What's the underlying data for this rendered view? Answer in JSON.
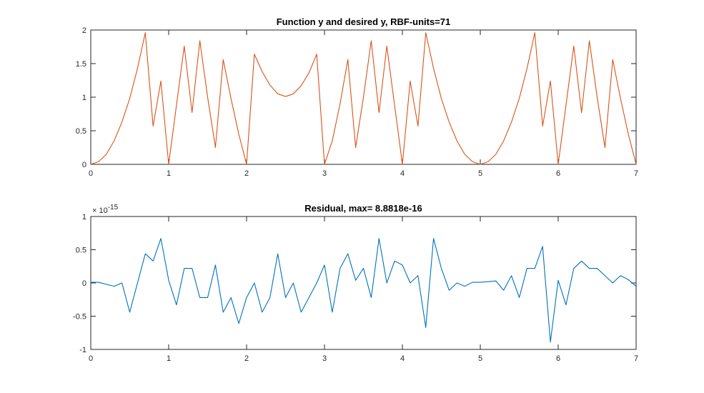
{
  "chart_data": [
    {
      "type": "line",
      "title": "Function y and desired y, RBF-units=71",
      "xlabel": "",
      "ylabel": "",
      "xlim": [
        0,
        7
      ],
      "ylim": [
        0,
        2
      ],
      "xticks": [
        "0",
        "1",
        "2",
        "3",
        "4",
        "5",
        "6",
        "7"
      ],
      "yticks": [
        "0",
        "0.5",
        "1",
        "1.5",
        "2"
      ],
      "ytick_values": [
        0,
        0.5,
        1,
        1.5,
        2
      ],
      "grid": false,
      "color": "#D95319",
      "series": [
        {
          "x": [
            0,
            0.1,
            0.2,
            0.3,
            0.4,
            0.5,
            0.6,
            0.7,
            0.8,
            0.9,
            1.0,
            1.1,
            1.2,
            1.3,
            1.4,
            1.5,
            1.6,
            1.7,
            1.8,
            1.9,
            2.0,
            2.1,
            2.2,
            2.3,
            2.4,
            2.5,
            2.6,
            2.7,
            2.8,
            2.9,
            3.0,
            3.1,
            3.2,
            3.3,
            3.4,
            3.5,
            3.6,
            3.7,
            3.8,
            3.9,
            4.0,
            4.1,
            4.2,
            4.3,
            4.4,
            4.5,
            4.6,
            4.7,
            4.8,
            4.9,
            5.0,
            5.1,
            5.2,
            5.3,
            5.4,
            5.5,
            5.6,
            5.7,
            5.8,
            5.9,
            6.0,
            6.1,
            6.2,
            6.3,
            6.4,
            6.5,
            6.6,
            6.7,
            6.8,
            6.9,
            7.0
          ],
          "values": [
            0,
            0.04,
            0.15,
            0.35,
            0.63,
            0.98,
            1.43,
            1.96,
            0.57,
            1.24,
            0,
            0.88,
            1.76,
            0.77,
            1.84,
            1.0,
            0.25,
            1.56,
            0.98,
            0.45,
            0,
            1.64,
            1.38,
            1.18,
            1.05,
            1.01,
            1.05,
            1.17,
            1.36,
            1.64,
            0,
            0.35,
            0.9,
            1.56,
            0.25,
            1.0,
            1.84,
            0.77,
            1.76,
            0.88,
            0,
            1.24,
            0.57,
            1.96,
            1.43,
            0.98,
            0.63,
            0.35,
            0.15,
            0.04,
            0,
            0.04,
            0.15,
            0.35,
            0.63,
            0.98,
            1.43,
            1.96,
            0.57,
            1.24,
            0,
            0.88,
            1.76,
            0.77,
            1.84,
            1.0,
            0.25,
            1.56,
            0.98,
            0.45,
            0
          ]
        }
      ]
    },
    {
      "type": "line",
      "title": "Residual, max= 8.8818e-16",
      "xlabel": "",
      "ylabel": "",
      "exponent_label": "× 10",
      "exponent_power": "-15",
      "xlim": [
        0,
        7
      ],
      "ylim": [
        -1,
        1
      ],
      "xticks": [
        "0",
        "1",
        "2",
        "3",
        "4",
        "5",
        "6",
        "7"
      ],
      "yticks": [
        "-1",
        "-0.5",
        "0",
        "0.5",
        "1"
      ],
      "ytick_values": [
        -1,
        -0.5,
        0,
        0.5,
        1
      ],
      "grid": false,
      "color": "#0072BD",
      "series": [
        {
          "x": [
            0,
            0.1,
            0.2,
            0.3,
            0.4,
            0.5,
            0.6,
            0.7,
            0.8,
            0.9,
            1.0,
            1.1,
            1.2,
            1.3,
            1.4,
            1.5,
            1.6,
            1.7,
            1.8,
            1.9,
            2.0,
            2.1,
            2.2,
            2.3,
            2.4,
            2.5,
            2.6,
            2.7,
            2.8,
            2.9,
            3.0,
            3.1,
            3.2,
            3.3,
            3.4,
            3.5,
            3.6,
            3.7,
            3.8,
            3.9,
            4.0,
            4.1,
            4.2,
            4.3,
            4.4,
            4.5,
            4.6,
            4.7,
            4.8,
            4.9,
            5.0,
            5.1,
            5.2,
            5.3,
            5.4,
            5.5,
            5.6,
            5.7,
            5.8,
            5.9,
            6.0,
            6.1,
            6.2,
            6.3,
            6.4,
            6.5,
            6.6,
            6.7,
            6.8,
            6.9,
            7.0
          ],
          "values": [
            0.01,
            0.01,
            -0.02,
            -0.05,
            0,
            -0.44,
            0,
            0.44,
            0.33,
            0.67,
            0.04,
            -0.33,
            0.22,
            0.22,
            -0.22,
            -0.22,
            0.27,
            -0.44,
            -0.22,
            -0.61,
            -0.22,
            0,
            -0.44,
            -0.22,
            0.44,
            -0.22,
            0,
            -0.44,
            -0.22,
            0,
            0.27,
            -0.44,
            0.22,
            0.44,
            0.04,
            0.22,
            -0.22,
            0.67,
            0,
            0.33,
            0.27,
            0,
            0.11,
            -0.67,
            0.67,
            0.22,
            -0.11,
            0,
            -0.05,
            0.01,
            0.01,
            0.02,
            0.03,
            -0.11,
            0.11,
            -0.22,
            0.22,
            0.22,
            0.55,
            -0.89,
            0.04,
            -0.33,
            0.22,
            0.33,
            0.22,
            0.22,
            0.11,
            0,
            0.11,
            0.05,
            -0.05
          ]
        }
      ]
    }
  ]
}
